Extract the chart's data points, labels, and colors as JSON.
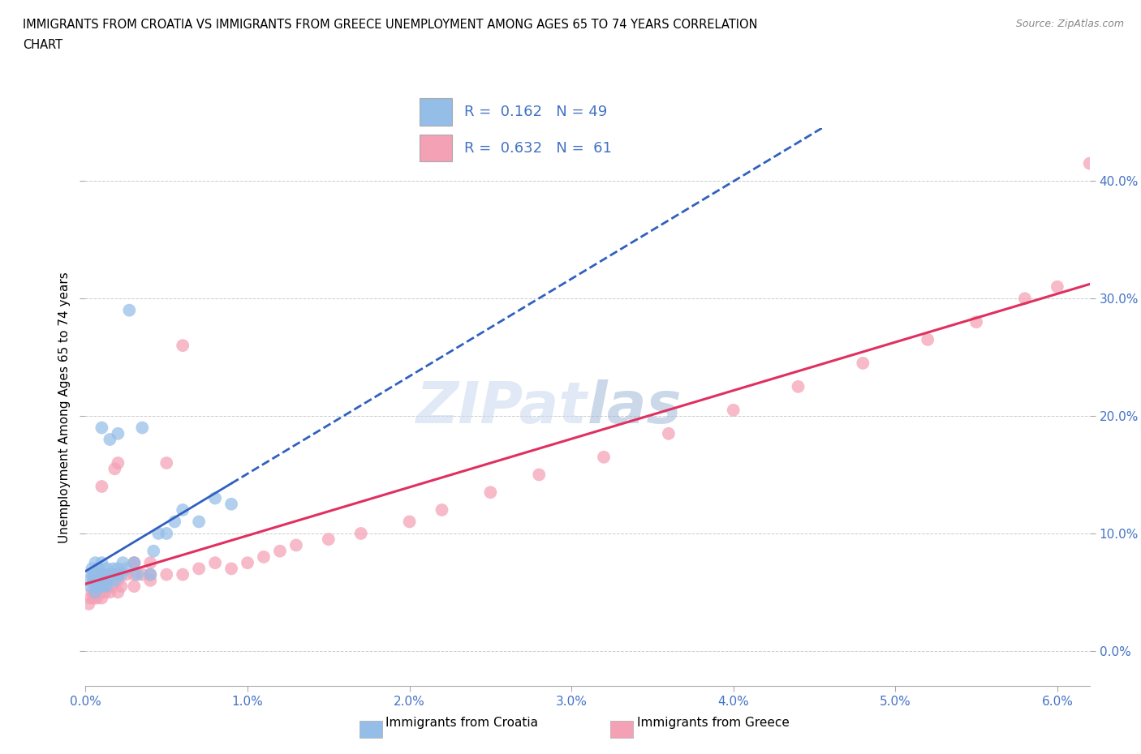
{
  "title_line1": "IMMIGRANTS FROM CROATIA VS IMMIGRANTS FROM GREECE UNEMPLOYMENT AMONG AGES 65 TO 74 YEARS CORRELATION",
  "title_line2": "CHART",
  "source": "Source: ZipAtlas.com",
  "ylabel_label": "Unemployment Among Ages 65 to 74 years",
  "legend_label1": "Immigrants from Croatia",
  "legend_label2": "Immigrants from Greece",
  "R1": 0.162,
  "N1": 49,
  "R2": 0.632,
  "N2": 61,
  "xlim": [
    0.0,
    0.062
  ],
  "ylim": [
    -0.03,
    0.445
  ],
  "xticks": [
    0.0,
    0.01,
    0.02,
    0.03,
    0.04,
    0.05,
    0.06
  ],
  "xticklabels": [
    "0.0%",
    "1.0%",
    "2.0%",
    "3.0%",
    "4.0%",
    "5.0%",
    "6.0%"
  ],
  "yticks": [
    0.0,
    0.1,
    0.2,
    0.3,
    0.4
  ],
  "yticklabels": [
    "0.0%",
    "10.0%",
    "20.0%",
    "30.0%",
    "40.0%"
  ],
  "color_croatia": "#94bde8",
  "color_greece": "#f4a0b5",
  "trendline_color_croatia": "#3060c0",
  "trendline_color_greece": "#e03060",
  "watermark_color": "#c8d8ee",
  "croatia_x": [
    0.0002,
    0.0003,
    0.0004,
    0.0004,
    0.0005,
    0.0005,
    0.0006,
    0.0006,
    0.0007,
    0.0007,
    0.0008,
    0.0008,
    0.0009,
    0.0009,
    0.001,
    0.001,
    0.001,
    0.001,
    0.001,
    0.0012,
    0.0012,
    0.0013,
    0.0013,
    0.0014,
    0.0015,
    0.0015,
    0.0016,
    0.0017,
    0.0018,
    0.0019,
    0.002,
    0.002,
    0.002,
    0.0022,
    0.0023,
    0.0025,
    0.0027,
    0.003,
    0.0032,
    0.0035,
    0.004,
    0.0042,
    0.0045,
    0.005,
    0.0055,
    0.006,
    0.007,
    0.008,
    0.009
  ],
  "croatia_y": [
    0.06,
    0.055,
    0.065,
    0.07,
    0.06,
    0.065,
    0.05,
    0.075,
    0.055,
    0.065,
    0.06,
    0.07,
    0.055,
    0.065,
    0.055,
    0.06,
    0.065,
    0.075,
    0.19,
    0.06,
    0.065,
    0.055,
    0.07,
    0.06,
    0.065,
    0.18,
    0.065,
    0.07,
    0.06,
    0.065,
    0.065,
    0.07,
    0.185,
    0.065,
    0.075,
    0.07,
    0.29,
    0.075,
    0.065,
    0.19,
    0.065,
    0.085,
    0.1,
    0.1,
    0.11,
    0.12,
    0.11,
    0.13,
    0.125
  ],
  "greece_x": [
    0.0002,
    0.0003,
    0.0004,
    0.0005,
    0.0005,
    0.0006,
    0.0007,
    0.0008,
    0.0009,
    0.001,
    0.001,
    0.001,
    0.001,
    0.0012,
    0.0013,
    0.0014,
    0.0015,
    0.0016,
    0.0017,
    0.0018,
    0.002,
    0.002,
    0.002,
    0.002,
    0.0022,
    0.0025,
    0.003,
    0.003,
    0.003,
    0.003,
    0.0035,
    0.004,
    0.004,
    0.004,
    0.005,
    0.005,
    0.006,
    0.006,
    0.007,
    0.008,
    0.009,
    0.01,
    0.011,
    0.012,
    0.013,
    0.015,
    0.017,
    0.02,
    0.022,
    0.025,
    0.028,
    0.032,
    0.036,
    0.04,
    0.044,
    0.048,
    0.052,
    0.055,
    0.058,
    0.06,
    0.062
  ],
  "greece_y": [
    0.04,
    0.045,
    0.05,
    0.045,
    0.06,
    0.05,
    0.045,
    0.055,
    0.05,
    0.045,
    0.055,
    0.065,
    0.14,
    0.05,
    0.055,
    0.065,
    0.05,
    0.055,
    0.065,
    0.155,
    0.05,
    0.06,
    0.065,
    0.16,
    0.055,
    0.065,
    0.055,
    0.065,
    0.075,
    0.075,
    0.065,
    0.06,
    0.065,
    0.075,
    0.065,
    0.16,
    0.065,
    0.26,
    0.07,
    0.075,
    0.07,
    0.075,
    0.08,
    0.085,
    0.09,
    0.095,
    0.1,
    0.11,
    0.12,
    0.135,
    0.15,
    0.165,
    0.185,
    0.205,
    0.225,
    0.245,
    0.265,
    0.28,
    0.3,
    0.31,
    0.415
  ]
}
